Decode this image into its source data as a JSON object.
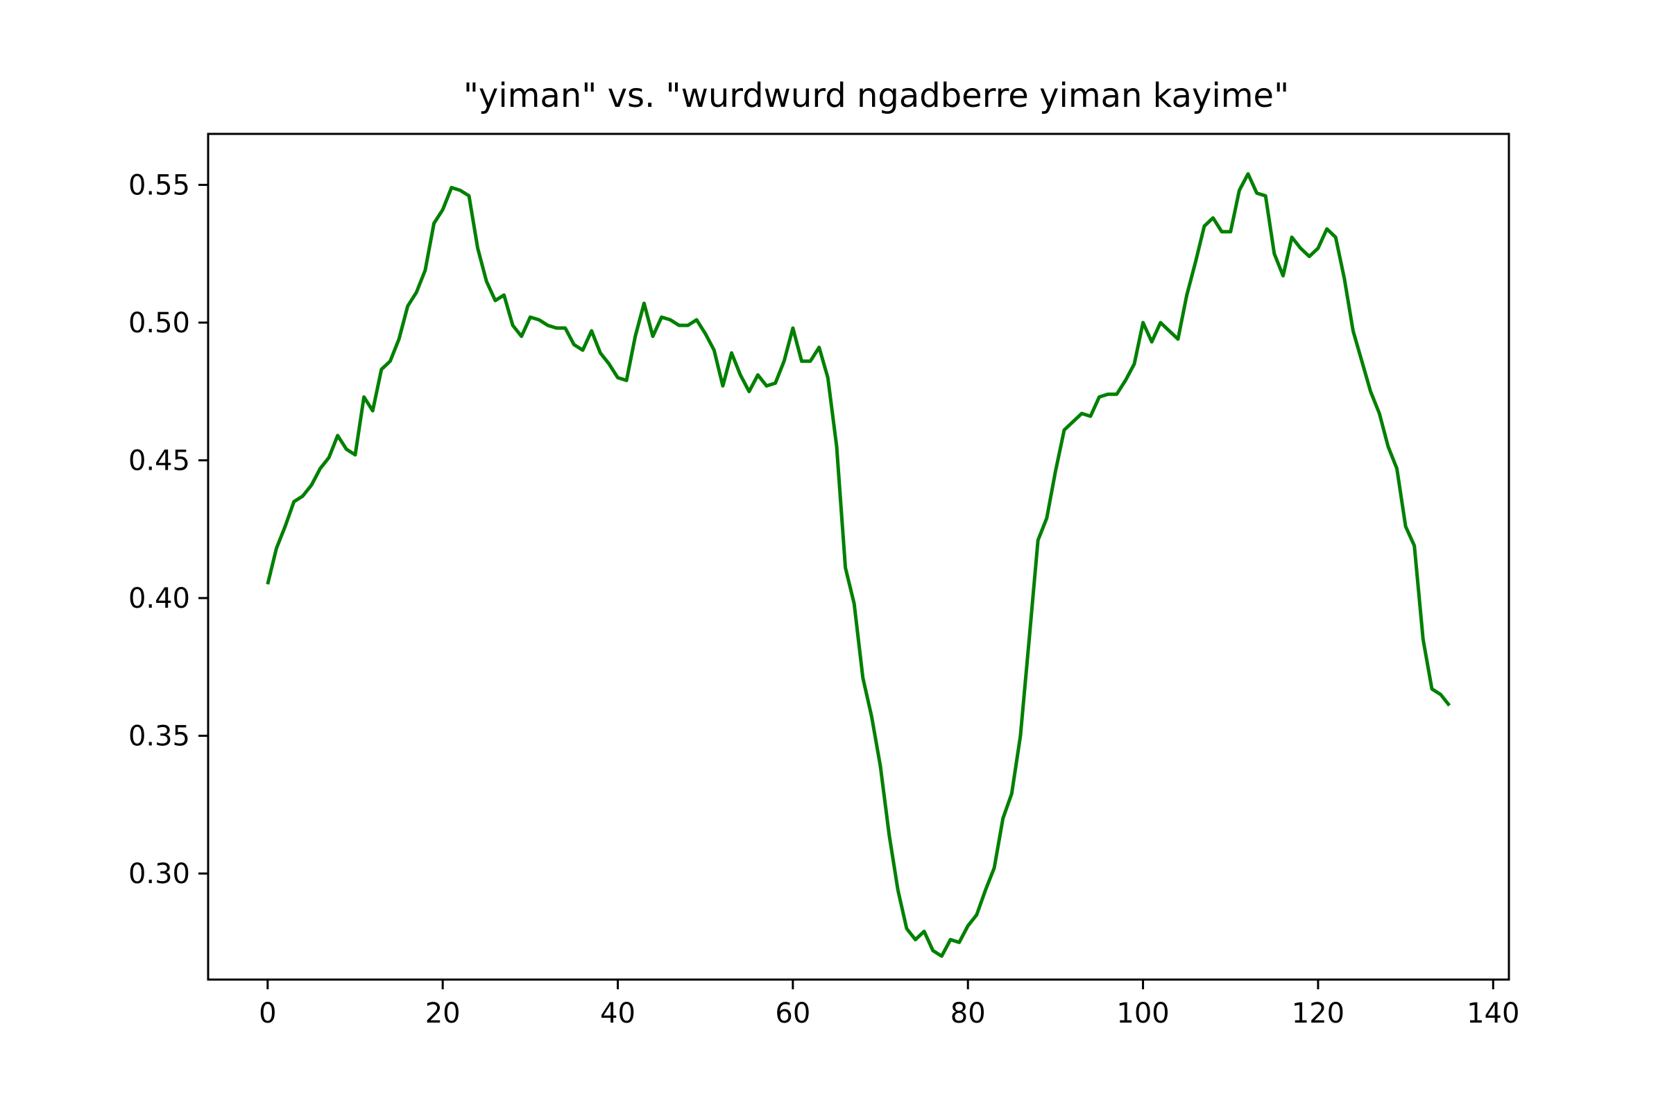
{
  "chart_data": {
    "type": "line",
    "title": "\"yiman\" vs. \"wurdwurd ngadberre yiman kayime\"",
    "xlabel": "",
    "ylabel": "",
    "xlim": [
      -6.8,
      141.8
    ],
    "ylim": [
      0.2615,
      0.5685
    ],
    "xticks": [
      0,
      20,
      40,
      60,
      80,
      100,
      120,
      140
    ],
    "yticks": [
      0.3,
      0.35,
      0.4,
      0.45,
      0.5,
      0.55
    ],
    "grid": false,
    "line_color": "#008000",
    "series": [
      {
        "x": [
          0,
          1,
          2,
          3,
          4,
          5,
          6,
          7,
          8,
          9,
          10,
          11,
          12,
          13,
          14,
          15,
          16,
          17,
          18,
          19,
          20,
          21,
          22,
          23,
          24,
          25,
          26,
          27,
          28,
          29,
          30,
          31,
          32,
          33,
          34,
          35,
          36,
          37,
          38,
          39,
          40,
          41,
          42,
          43,
          44,
          45,
          46,
          47,
          48,
          49,
          50,
          51,
          52,
          53,
          54,
          55,
          56,
          57,
          58,
          59,
          60,
          61,
          62,
          63,
          64,
          65,
          66,
          67,
          68,
          69,
          70,
          71,
          72,
          73,
          74,
          75,
          76,
          77,
          78,
          79,
          80,
          81,
          82,
          83,
          84,
          85,
          86,
          87,
          88,
          89,
          90,
          91,
          92,
          93,
          94,
          95,
          96,
          97,
          98,
          99,
          100,
          101,
          102,
          103,
          104,
          105,
          106,
          107,
          108,
          109,
          110,
          111,
          112,
          113,
          114,
          115,
          116,
          117,
          118,
          119,
          120,
          121,
          122,
          123,
          124,
          125,
          126,
          127,
          128,
          129,
          130,
          131,
          132,
          133,
          134,
          135
        ],
        "values": [
          0.405,
          0.418,
          0.426,
          0.435,
          0.437,
          0.441,
          0.447,
          0.451,
          0.459,
          0.454,
          0.452,
          0.473,
          0.468,
          0.483,
          0.486,
          0.494,
          0.506,
          0.511,
          0.519,
          0.536,
          0.541,
          0.549,
          0.548,
          0.546,
          0.527,
          0.515,
          0.508,
          0.51,
          0.499,
          0.495,
          0.502,
          0.501,
          0.499,
          0.498,
          0.498,
          0.492,
          0.49,
          0.497,
          0.489,
          0.485,
          0.48,
          0.479,
          0.495,
          0.507,
          0.495,
          0.502,
          0.501,
          0.499,
          0.499,
          0.501,
          0.496,
          0.49,
          0.477,
          0.489,
          0.481,
          0.475,
          0.481,
          0.477,
          0.478,
          0.486,
          0.498,
          0.486,
          0.486,
          0.491,
          0.48,
          0.455,
          0.411,
          0.398,
          0.371,
          0.357,
          0.339,
          0.314,
          0.294,
          0.28,
          0.276,
          0.279,
          0.272,
          0.27,
          0.276,
          0.275,
          0.281,
          0.285,
          0.294,
          0.302,
          0.32,
          0.329,
          0.35,
          0.385,
          0.421,
          0.429,
          0.446,
          0.461,
          0.464,
          0.467,
          0.466,
          0.473,
          0.474,
          0.474,
          0.479,
          0.485,
          0.5,
          0.493,
          0.5,
          0.497,
          0.494,
          0.51,
          0.522,
          0.535,
          0.538,
          0.533,
          0.533,
          0.548,
          0.554,
          0.547,
          0.546,
          0.525,
          0.517,
          0.531,
          0.527,
          0.524,
          0.527,
          0.534,
          0.531,
          0.516,
          0.497,
          0.486,
          0.475,
          0.467,
          0.455,
          0.447,
          0.426,
          0.419,
          0.385,
          0.367,
          0.365,
          0.361
        ]
      }
    ]
  }
}
